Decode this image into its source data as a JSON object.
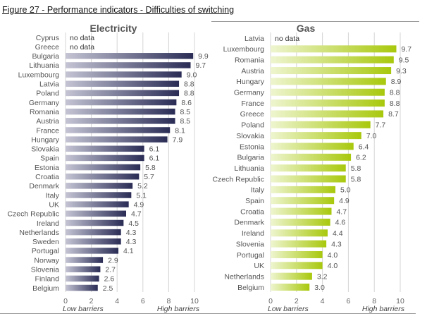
{
  "figure_title": "Figure 27 - Performance indicators - Difficulties of switching",
  "chart_data": [
    {
      "type": "bar",
      "orientation": "horizontal",
      "title": "Electricity",
      "categories": [
        "Cyprus",
        "Greece",
        "Bulgaria",
        "Lithuania",
        "Luxembourg",
        "Latvia",
        "Poland",
        "Germany",
        "Romania",
        "Austria",
        "France",
        "Hungary",
        "Slovakia",
        "Spain",
        "Estonia",
        "Croatia",
        "Denmark",
        "Italy",
        "UK",
        "Czech Republic",
        "Ireland",
        "Netherlands",
        "Sweden",
        "Portugal",
        "Norway",
        "Slovenia",
        "Finland",
        "Belgium"
      ],
      "values": [
        null,
        null,
        9.9,
        9.7,
        9.0,
        8.8,
        8.8,
        8.6,
        8.5,
        8.5,
        8.1,
        7.9,
        6.1,
        6.1,
        5.8,
        5.7,
        5.2,
        5.1,
        4.9,
        4.7,
        4.5,
        4.3,
        4.3,
        4.1,
        2.9,
        2.7,
        2.6,
        2.5
      ],
      "value_labels": [
        "no data",
        "no data",
        "9.9",
        "9.7",
        "9.0",
        "8.8",
        "8.8",
        "8.6",
        "8.5",
        "8.5",
        "8.1",
        "7.9",
        "6.1",
        "6.1",
        "5.8",
        "5.7",
        "5.2",
        "5.1",
        "4.9",
        "4.7",
        "4.5",
        "4.3",
        "4.3",
        "4.1",
        "2.9",
        "2.7",
        "2.6",
        "2.5"
      ],
      "xlim": [
        0,
        10
      ],
      "xticks": [
        "0",
        "2",
        "4",
        "6",
        "8",
        "10"
      ],
      "xlabel_left": "Low barriers",
      "xlabel_right": "High barriers",
      "grid": true,
      "bar_color_light": "#c4c4d4",
      "bar_color_dark": "#2a2c55"
    },
    {
      "type": "bar",
      "orientation": "horizontal",
      "title": "Gas",
      "categories": [
        "Latvia",
        "Luxembourg",
        "Romania",
        "Austria",
        "Hungary",
        "Germany",
        "France",
        "Greece",
        "Poland",
        "Slovakia",
        "Estonia",
        "Bulgaria",
        "Lithuania",
        "Czech Republic",
        "Italy",
        "Spain",
        "Croatia",
        "Denmark",
        "Ireland",
        "Slovenia",
        "Portugal",
        "UK",
        "Netherlands",
        "Belgium"
      ],
      "values": [
        null,
        9.7,
        9.5,
        9.3,
        8.9,
        8.8,
        8.8,
        8.7,
        7.7,
        7.0,
        6.4,
        6.2,
        5.8,
        5.8,
        5.0,
        4.9,
        4.7,
        4.6,
        4.4,
        4.3,
        4.0,
        4.0,
        3.2,
        3.0
      ],
      "value_labels": [
        "no data",
        "9.7",
        "9.5",
        "9.3",
        "8.9",
        "8.8",
        "8.8",
        "8.7",
        "7.7",
        "7.0",
        "6.4",
        "6.2",
        "5.8",
        "5.8",
        "5.0",
        "4.9",
        "4.7",
        "4.6",
        "4.4",
        "4.3",
        "4.0",
        "4.0",
        "3.2",
        "3.0"
      ],
      "xlim": [
        0,
        10
      ],
      "xticks": [
        "0",
        "2",
        "4",
        "6",
        "8",
        "10"
      ],
      "xlabel_left": "Low barriers",
      "xlabel_right": "High barriers",
      "grid": true,
      "bar_color_light": "#eef5d0",
      "bar_color_dark": "#a8c80c"
    }
  ]
}
